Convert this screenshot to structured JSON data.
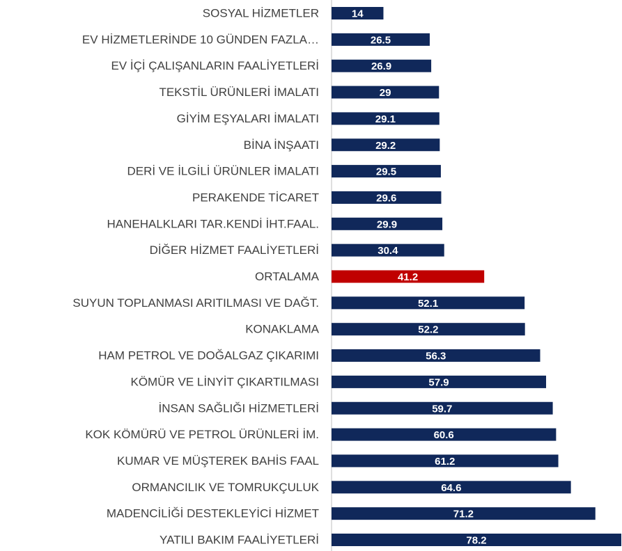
{
  "chart_data": {
    "type": "hbar",
    "categories": [
      "SOSYAL HİZMETLER",
      "EV HİZMETLERİNDE 10 GÜNDEN FAZLA…",
      "EV İÇİ ÇALIŞANLARIN FAALİYETLERİ",
      "TEKSTİL ÜRÜNLERİ İMALATI",
      "GİYİM EŞYALARI İMALATI",
      "BİNA İNŞAATI",
      "DERİ VE İLGİLİ ÜRÜNLER İMALATI",
      "PERAKENDE TİCARET",
      "HANEHALKLARI TAR.KENDİ İHT.FAAL.",
      "DİĞER HİZMET FAALİYETLERİ",
      "ORTALAMA",
      "SUYUN TOPLANMASI ARITILMASI VE DAĞT.",
      "KONAKLAMA",
      "HAM PETROL VE DOĞALGAZ ÇIKARIMI",
      "KÖMÜR VE LİNYİT ÇIKARTILMASI",
      "İNSAN SAĞLIĞI HİZMETLERİ",
      "KOK KÖMÜRÜ VE PETROL ÜRÜNLERİ İM.",
      "KUMAR VE MÜŞTEREK BAHİS FAAL",
      "ORMANCILIK VE TOMRUKÇULUK",
      "MADENCİLİĞİ DESTEKLEYİCİ HİZMET",
      "YATILI BAKIM FAALİYETLERİ"
    ],
    "values": [
      14,
      26.5,
      26.9,
      29,
      29.1,
      29.2,
      29.5,
      29.6,
      29.9,
      30.4,
      41.2,
      52.1,
      52.2,
      56.3,
      57.9,
      59.7,
      60.6,
      61.2,
      64.6,
      71.2,
      78.2
    ],
    "colors": [
      "#10285a",
      "#10285a",
      "#10285a",
      "#10285a",
      "#10285a",
      "#10285a",
      "#10285a",
      "#10285a",
      "#10285a",
      "#10285a",
      "#c00000",
      "#10285a",
      "#10285a",
      "#10285a",
      "#10285a",
      "#10285a",
      "#10285a",
      "#10285a",
      "#10285a",
      "#10285a",
      "#10285a"
    ]
  }
}
